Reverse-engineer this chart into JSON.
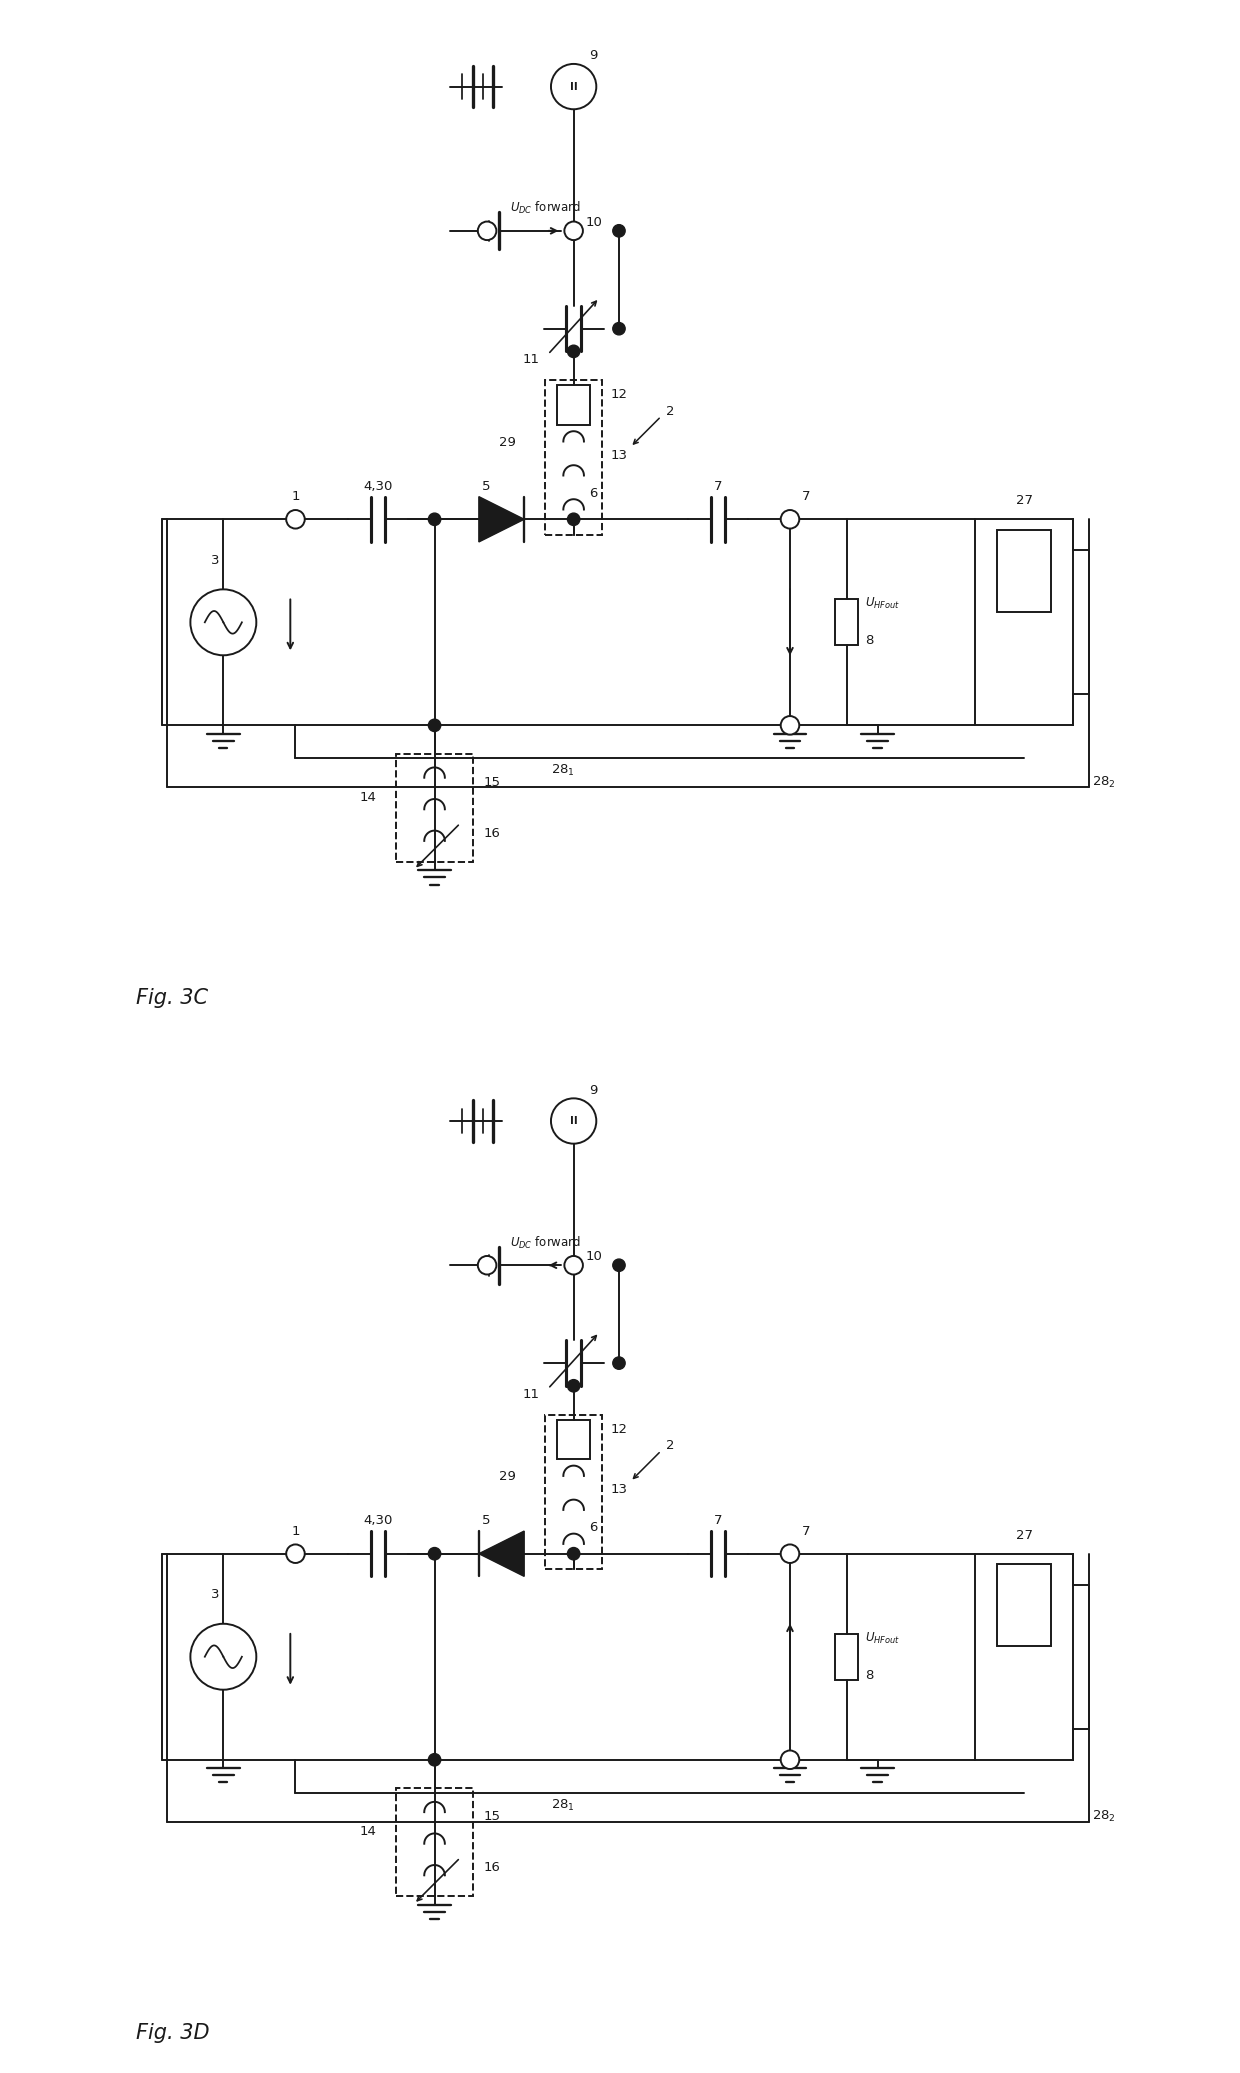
{
  "fig_width": 12.4,
  "fig_height": 20.73,
  "bg_color": "#ffffff",
  "line_color": "#1a1a1a",
  "line_width": 1.4,
  "fig3c_label": "Fig. 3C",
  "fig3d_label": "Fig. 3D",
  "label_fontsize": 15,
  "annotation_fontsize": 9.5
}
